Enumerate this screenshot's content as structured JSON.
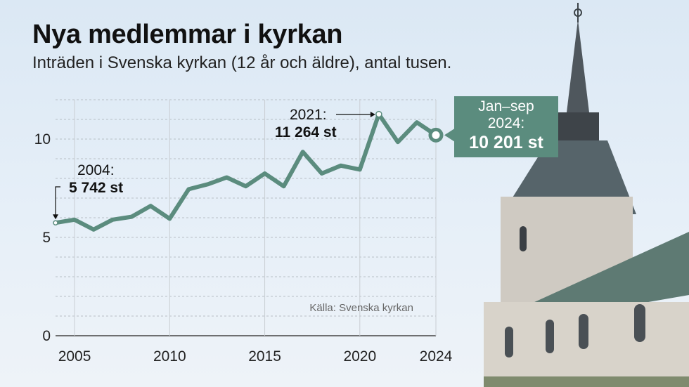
{
  "header": {
    "title": "Nya medlemmar i kyrkan",
    "subtitle": "Inträden i Svenska kyrkan (12 år och äldre), antal tusen."
  },
  "source": "Källa: Svenska kyrkan",
  "colors": {
    "series": "#5b8c7e",
    "callout_bg": "#5b8c7e",
    "background": "#dde9f5"
  },
  "annotations": {
    "start": {
      "label": "2004:",
      "value": "5 742 st"
    },
    "peak": {
      "label": "2021:",
      "value": "11 264 st"
    },
    "latest": {
      "label_1": "Jan–sep",
      "label_2": "2024:",
      "value": "10 201 st"
    }
  },
  "chart_data": {
    "type": "line",
    "title": "Nya medlemmar i kyrkan",
    "subtitle": "Inträden i Svenska kyrkan (12 år och äldre), antal tusen.",
    "x": [
      2004,
      2005,
      2006,
      2007,
      2008,
      2009,
      2010,
      2011,
      2012,
      2013,
      2014,
      2015,
      2016,
      2017,
      2018,
      2019,
      2020,
      2021,
      2022,
      2023,
      2024
    ],
    "series": [
      {
        "values": [
          5.742,
          5.9,
          5.4,
          5.9,
          6.05,
          6.6,
          5.95,
          7.45,
          7.7,
          8.05,
          7.6,
          8.25,
          7.6,
          9.35,
          8.25,
          8.65,
          8.45,
          11.264,
          9.85,
          10.85,
          10.201
        ]
      }
    ],
    "ylim": [
      0,
      12
    ],
    "yticks": [
      "0",
      "5",
      "10"
    ],
    "xticks": [
      "2005",
      "2010",
      "2015",
      "2020",
      "2024"
    ],
    "grid": "horizontal dashed lines, one per thousand",
    "note": "2024 avser januari–september"
  }
}
